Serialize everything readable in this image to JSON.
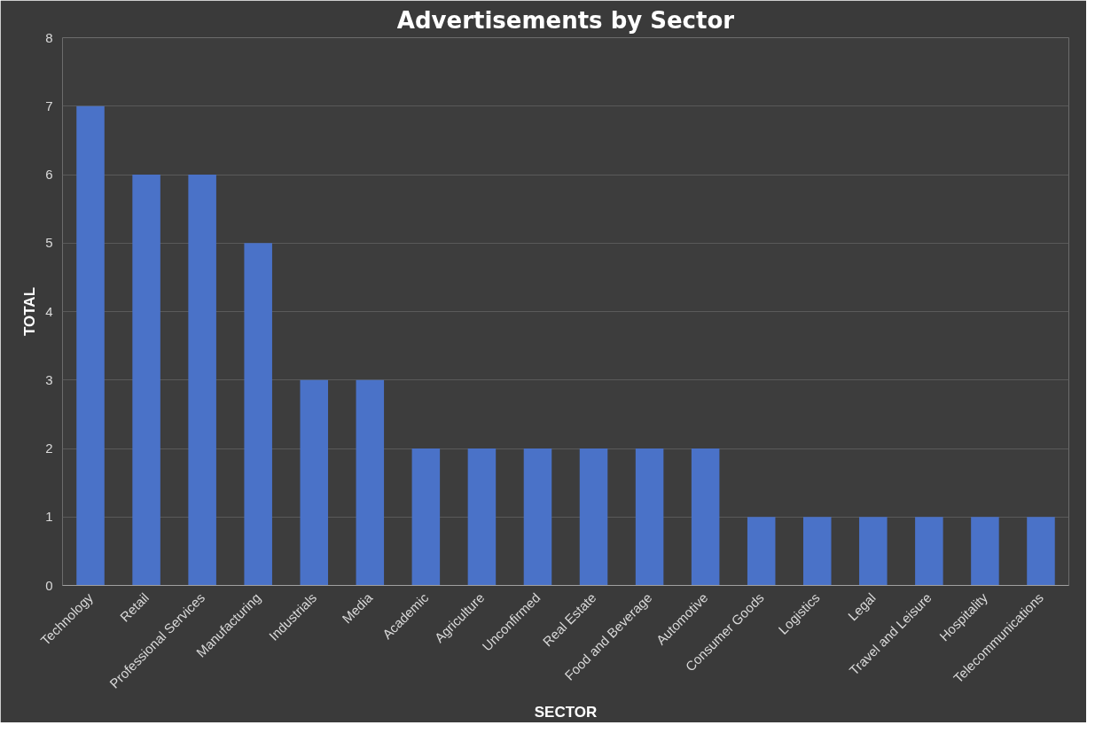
{
  "chart_data": {
    "type": "bar",
    "title": "Advertisements by Sector",
    "xlabel": "SECTOR",
    "ylabel": "TOTAL",
    "categories": [
      "Technology",
      "Retail",
      "Professional Services",
      "Manufacturing",
      "Industrials",
      "Media",
      "Academic",
      "Agriculture",
      "Unconfirmed",
      "Real Estate",
      "Food and Beverage",
      "Automotive",
      "Consumer Goods",
      "Logistics",
      "Legal",
      "Travel and Leisure",
      "Hospitality",
      "Telecommunications"
    ],
    "values": [
      7,
      6,
      6,
      5,
      3,
      3,
      2,
      2,
      2,
      2,
      2,
      2,
      1,
      1,
      1,
      1,
      1,
      1
    ],
    "color": "#4a72c8",
    "ylim": [
      0,
      8
    ],
    "yticks": [
      0,
      1,
      2,
      3,
      4,
      5,
      6,
      7,
      8
    ],
    "grid": "y"
  }
}
